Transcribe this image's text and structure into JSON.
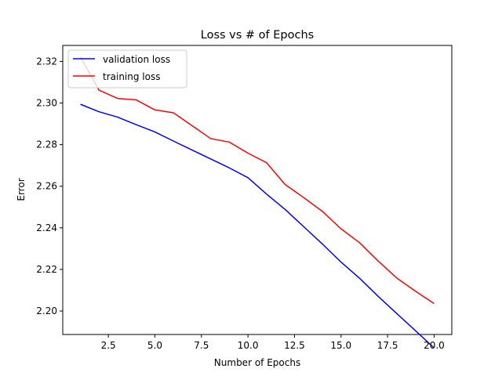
{
  "chart_data": {
    "type": "line",
    "title": "Loss vs # of Epochs",
    "xlabel": "Number of Epochs",
    "ylabel": "Error",
    "xlim": [
      0.05,
      20.95
    ],
    "ylim": [
      2.1887,
      2.3277
    ],
    "xticks": [
      2.5,
      5.0,
      7.5,
      10.0,
      12.5,
      15.0,
      17.5,
      20.0
    ],
    "xtick_labels": [
      "2.5",
      "5.0",
      "7.5",
      "10.0",
      "12.5",
      "15.0",
      "17.5",
      "20.0"
    ],
    "yticks": [
      2.2,
      2.22,
      2.24,
      2.26,
      2.28,
      2.3,
      2.32
    ],
    "ytick_labels": [
      "2.20",
      "2.22",
      "2.24",
      "2.26",
      "2.28",
      "2.30",
      "2.32"
    ],
    "grid": false,
    "legend_position": "top-left",
    "x": [
      1,
      2,
      3,
      4,
      5,
      6,
      7,
      8,
      9,
      10,
      11,
      12,
      13,
      14,
      15,
      16,
      17,
      18,
      19,
      20
    ],
    "series": [
      {
        "name": "validation loss",
        "color": "#0000ff",
        "values": [
          2.2994,
          2.2958,
          2.2932,
          2.2896,
          2.2861,
          2.2817,
          2.2774,
          2.2731,
          2.2688,
          2.2641,
          2.2562,
          2.2488,
          2.2405,
          2.2322,
          2.2235,
          2.2157,
          2.207,
          2.1987,
          2.1905,
          2.1822
        ]
      },
      {
        "name": "training loss",
        "color": "#ff0000",
        "values": [
          2.3223,
          2.3062,
          2.3022,
          2.3015,
          2.2967,
          2.2953,
          2.2891,
          2.2829,
          2.2812,
          2.2759,
          2.2713,
          2.2608,
          2.2545,
          2.2479,
          2.2395,
          2.2328,
          2.224,
          2.2158,
          2.2095,
          2.2036
        ]
      }
    ]
  }
}
